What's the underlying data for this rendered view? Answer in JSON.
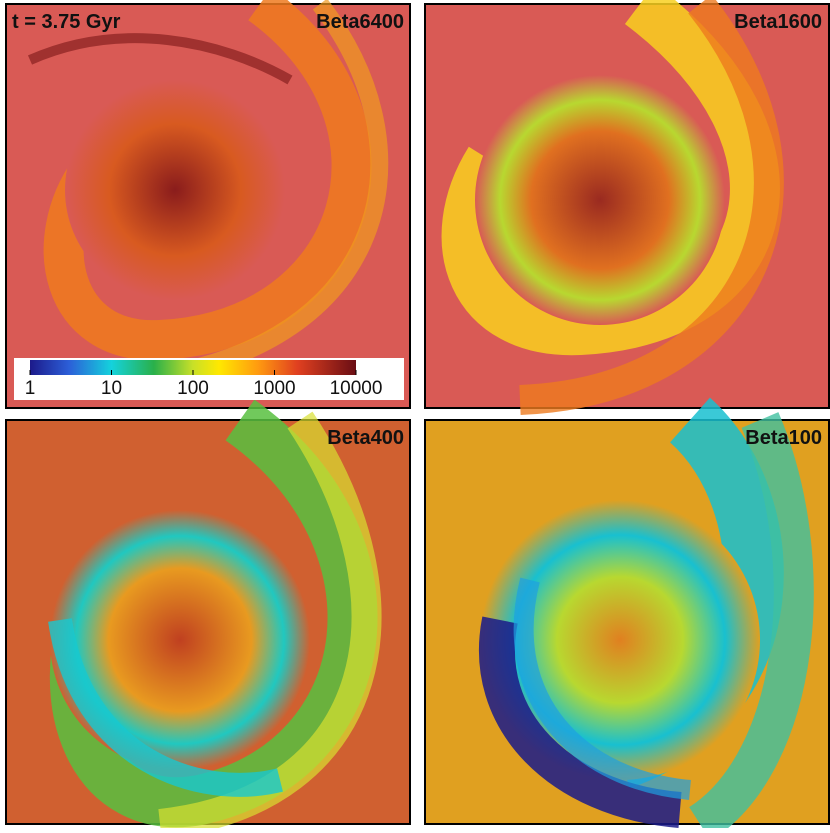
{
  "time_label": "t = 3.75 Gyr",
  "panels": [
    {
      "label": "Beta6400"
    },
    {
      "label": "Beta1600"
    },
    {
      "label": "Beta400"
    },
    {
      "label": "Beta100"
    }
  ],
  "colorbar": {
    "scale": "log",
    "range": [
      1,
      10000
    ],
    "ticks": [
      1,
      10,
      100,
      1000,
      10000
    ]
  }
}
